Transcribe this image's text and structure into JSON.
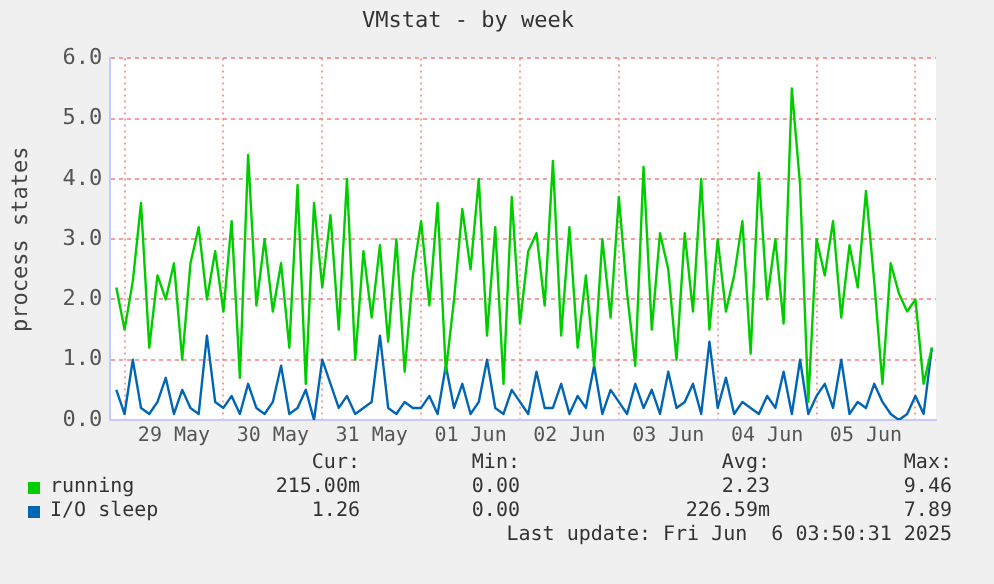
{
  "chart_data": {
    "type": "line",
    "title": "VMstat - by week",
    "ylabel": "process states",
    "x": [
      "2025-05-28T22:00",
      "2025-05-29T00:00",
      "2025-05-29T02:00",
      "2025-05-29T04:00",
      "2025-05-29T06:00",
      "2025-05-29T08:00",
      "2025-05-29T10:00",
      "2025-05-29T12:00",
      "2025-05-29T14:00",
      "2025-05-29T16:00",
      "2025-05-29T18:00",
      "2025-05-29T20:00",
      "2025-05-29T22:00",
      "2025-05-30T00:00",
      "2025-05-30T02:00",
      "2025-05-30T04:00",
      "2025-05-30T06:00",
      "2025-05-30T08:00",
      "2025-05-30T10:00",
      "2025-05-30T12:00",
      "2025-05-30T14:00",
      "2025-05-30T16:00",
      "2025-05-30T18:00",
      "2025-05-30T20:00",
      "2025-05-30T22:00",
      "2025-05-31T00:00",
      "2025-05-31T02:00",
      "2025-05-31T04:00",
      "2025-05-31T06:00",
      "2025-05-31T08:00",
      "2025-05-31T10:00",
      "2025-05-31T12:00",
      "2025-05-31T14:00",
      "2025-05-31T16:00",
      "2025-05-31T18:00",
      "2025-05-31T20:00",
      "2025-05-31T22:00",
      "2025-06-01T00:00",
      "2025-06-01T02:00",
      "2025-06-01T04:00",
      "2025-06-01T06:00",
      "2025-06-01T08:00",
      "2025-06-01T10:00",
      "2025-06-01T12:00",
      "2025-06-01T14:00",
      "2025-06-01T16:00",
      "2025-06-01T18:00",
      "2025-06-01T20:00",
      "2025-06-01T22:00",
      "2025-06-02T00:00",
      "2025-06-02T02:00",
      "2025-06-02T04:00",
      "2025-06-02T06:00",
      "2025-06-02T08:00",
      "2025-06-02T10:00",
      "2025-06-02T12:00",
      "2025-06-02T14:00",
      "2025-06-02T16:00",
      "2025-06-02T18:00",
      "2025-06-02T20:00",
      "2025-06-02T22:00",
      "2025-06-03T00:00",
      "2025-06-03T02:00",
      "2025-06-03T04:00",
      "2025-06-03T06:00",
      "2025-06-03T08:00",
      "2025-06-03T10:00",
      "2025-06-03T12:00",
      "2025-06-03T14:00",
      "2025-06-03T16:00",
      "2025-06-03T18:00",
      "2025-06-03T20:00",
      "2025-06-03T22:00",
      "2025-06-04T00:00",
      "2025-06-04T02:00",
      "2025-06-04T04:00",
      "2025-06-04T06:00",
      "2025-06-04T08:00",
      "2025-06-04T10:00",
      "2025-06-04T12:00",
      "2025-06-04T14:00",
      "2025-06-04T16:00",
      "2025-06-04T18:00",
      "2025-06-04T20:00",
      "2025-06-04T22:00",
      "2025-06-05T00:00",
      "2025-06-05T02:00",
      "2025-06-05T04:00",
      "2025-06-05T06:00",
      "2025-06-05T08:00",
      "2025-06-05T10:00",
      "2025-06-05T12:00",
      "2025-06-05T14:00",
      "2025-06-05T16:00",
      "2025-06-05T18:00",
      "2025-06-05T20:00",
      "2025-06-05T22:00",
      "2025-06-06T00:00",
      "2025-06-06T02:00",
      "2025-06-06T04:00"
    ],
    "series": [
      {
        "name": "running",
        "color": "#00cc00",
        "values": [
          2.2,
          1.5,
          2.3,
          3.6,
          1.2,
          2.4,
          2.0,
          2.6,
          1.0,
          2.6,
          3.2,
          2.0,
          2.8,
          1.8,
          3.3,
          0.7,
          4.4,
          1.9,
          3.0,
          1.8,
          2.6,
          1.2,
          3.9,
          0.6,
          3.6,
          2.2,
          3.4,
          1.5,
          4.0,
          1.0,
          2.8,
          1.7,
          2.9,
          1.3,
          3.0,
          0.8,
          2.4,
          3.3,
          1.9,
          3.6,
          0.8,
          2.0,
          3.5,
          2.5,
          4.0,
          1.4,
          3.2,
          0.6,
          3.7,
          1.6,
          2.8,
          3.1,
          1.9,
          4.3,
          1.4,
          3.2,
          1.2,
          2.4,
          0.9,
          3.0,
          1.7,
          3.7,
          2.1,
          0.9,
          4.2,
          1.5,
          3.1,
          2.5,
          1.0,
          3.1,
          1.8,
          4.0,
          1.5,
          3.0,
          1.8,
          2.4,
          3.3,
          1.1,
          4.1,
          2.0,
          3.0,
          1.6,
          5.5,
          3.9,
          0.3,
          3.0,
          2.4,
          3.3,
          1.7,
          2.9,
          2.2,
          3.8,
          2.3,
          0.6,
          2.6,
          2.1,
          1.8,
          2.0,
          0.6,
          1.2
        ]
      },
      {
        "name": "I/O sleep",
        "color": "#0066b3",
        "values": [
          0.5,
          0.1,
          1.0,
          0.2,
          0.1,
          0.3,
          0.7,
          0.1,
          0.5,
          0.2,
          0.1,
          1.4,
          0.3,
          0.2,
          0.4,
          0.1,
          0.6,
          0.2,
          0.1,
          0.3,
          0.9,
          0.1,
          0.2,
          0.5,
          0.0,
          1.0,
          0.6,
          0.2,
          0.4,
          0.1,
          0.2,
          0.3,
          1.4,
          0.2,
          0.1,
          0.3,
          0.2,
          0.2,
          0.4,
          0.1,
          0.9,
          0.2,
          0.6,
          0.1,
          0.3,
          1.0,
          0.2,
          0.1,
          0.5,
          0.3,
          0.1,
          0.8,
          0.2,
          0.2,
          0.6,
          0.1,
          0.4,
          0.2,
          0.9,
          0.1,
          0.5,
          0.3,
          0.1,
          0.6,
          0.2,
          0.5,
          0.1,
          0.8,
          0.2,
          0.3,
          0.6,
          0.1,
          1.3,
          0.2,
          0.7,
          0.1,
          0.3,
          0.2,
          0.1,
          0.4,
          0.2,
          0.8,
          0.1,
          1.0,
          0.1,
          0.4,
          0.6,
          0.2,
          1.0,
          0.1,
          0.3,
          0.2,
          0.6,
          0.3,
          0.1,
          0.0,
          0.1,
          0.4,
          0.1,
          1.2
        ]
      }
    ],
    "xlim": [
      "2025-05-28T20:30",
      "2025-06-06T05:00"
    ],
    "xticks": [
      {
        "value": "2025-05-29T00:00",
        "label": null
      },
      {
        "value": "2025-05-29T12:00",
        "label": "29 May"
      },
      {
        "value": "2025-05-30T00:00",
        "label": null
      },
      {
        "value": "2025-05-30T12:00",
        "label": "30 May"
      },
      {
        "value": "2025-05-31T00:00",
        "label": null
      },
      {
        "value": "2025-05-31T12:00",
        "label": "31 May"
      },
      {
        "value": "2025-06-01T00:00",
        "label": null
      },
      {
        "value": "2025-06-01T12:00",
        "label": "01 Jun"
      },
      {
        "value": "2025-06-02T00:00",
        "label": null
      },
      {
        "value": "2025-06-02T12:00",
        "label": "02 Jun"
      },
      {
        "value": "2025-06-03T00:00",
        "label": null
      },
      {
        "value": "2025-06-03T12:00",
        "label": "03 Jun"
      },
      {
        "value": "2025-06-04T00:00",
        "label": null
      },
      {
        "value": "2025-06-04T12:00",
        "label": "04 Jun"
      },
      {
        "value": "2025-06-05T00:00",
        "label": null
      },
      {
        "value": "2025-06-05T12:00",
        "label": "05 Jun"
      },
      {
        "value": "2025-06-06T00:00",
        "label": null
      }
    ],
    "ylim": [
      0,
      6
    ],
    "yticks": [
      {
        "value": 0,
        "label": "0.0"
      },
      {
        "value": 1,
        "label": "1.0"
      },
      {
        "value": 2,
        "label": "2.0"
      },
      {
        "value": 3,
        "label": "3.0"
      },
      {
        "value": 4,
        "label": "4.0"
      },
      {
        "value": 5,
        "label": "5.0"
      },
      {
        "value": 6,
        "label": "6.0"
      }
    ],
    "grid": true,
    "legend": "bottom left",
    "marker": "none",
    "line_style": "solid",
    "annotations": [
      "Cur:",
      "Min:",
      "Avg:",
      "Max:",
      "215.00m",
      "0.00",
      "2.23",
      "9.46",
      "1.26",
      "0.00",
      "226.59m",
      "7.89",
      "Last update: Fri Jun  6 03:50:31 2025"
    ]
  }
}
